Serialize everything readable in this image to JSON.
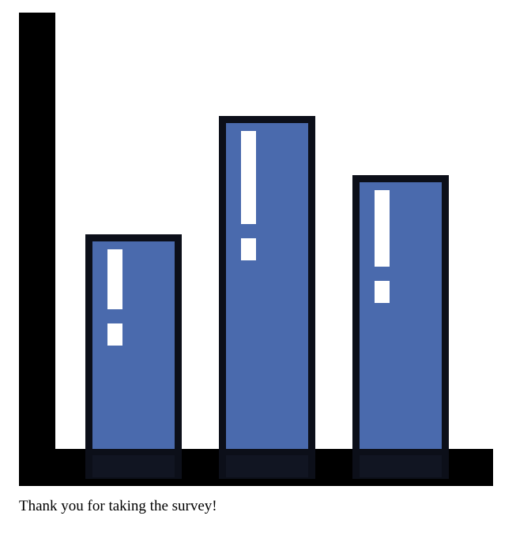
{
  "caption": "Thank you for taking the survey!",
  "chart_data": {
    "type": "bar",
    "title": "",
    "xlabel": "",
    "ylabel": "",
    "categories": [
      "",
      "",
      ""
    ],
    "values": [
      272,
      422,
      347
    ],
    "ylim": [
      0,
      553
    ],
    "grid": false,
    "legend": "none",
    "marker": "exclamation",
    "colors": {
      "bar_fill": "#4a6aad",
      "bar_outline": "#0c0f19",
      "axis": "#000000",
      "marker": "#ffffff"
    }
  }
}
